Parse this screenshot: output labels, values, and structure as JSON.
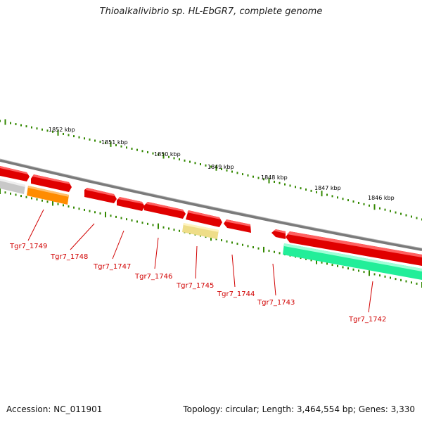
{
  "title": "Thioalkalivibrio sp. HL-EbGR7, complete genome",
  "footer": {
    "accession": "Accession: NC_011901",
    "topology": "Topology: circular; Length: 3,464,554 bp; Genes: 3,330"
  },
  "ruler": {
    "unit": "kbp",
    "ticks": [
      {
        "kbp": 1852,
        "label": "1852 kbp"
      },
      {
        "kbp": 1851,
        "label": "1851 kbp"
      },
      {
        "kbp": 1850,
        "label": "1850 kbp"
      },
      {
        "kbp": 1849,
        "label": "1849 kbp"
      },
      {
        "kbp": 1848,
        "label": "1848 kbp"
      },
      {
        "kbp": 1847,
        "label": "1847 kbp"
      },
      {
        "kbp": 1846,
        "label": "1846 kbp"
      }
    ]
  },
  "colors": {
    "cds": "#ee0000",
    "rna_orange": "#ff8c00",
    "pseudo_yellow": "#eedd88",
    "teal": "#22ee99",
    "grey": "#bbbbbb",
    "backbone": "#888888",
    "tick_green": "#338800",
    "label_red": "#d10000"
  },
  "genes": [
    {
      "id": "Tgr7_1749",
      "label": "Tgr7_1749"
    },
    {
      "id": "Tgr7_1748",
      "label": "Tgr7_1748"
    },
    {
      "id": "Tgr7_1747",
      "label": "Tgr7_1747"
    },
    {
      "id": "Tgr7_1746",
      "label": "Tgr7_1746"
    },
    {
      "id": "Tgr7_1745",
      "label": "Tgr7_1745"
    },
    {
      "id": "Tgr7_1744",
      "label": "Tgr7_1744"
    },
    {
      "id": "Tgr7_1743",
      "label": "Tgr7_1743"
    },
    {
      "id": "Tgr7_1742",
      "label": "Tgr7_1742"
    }
  ]
}
